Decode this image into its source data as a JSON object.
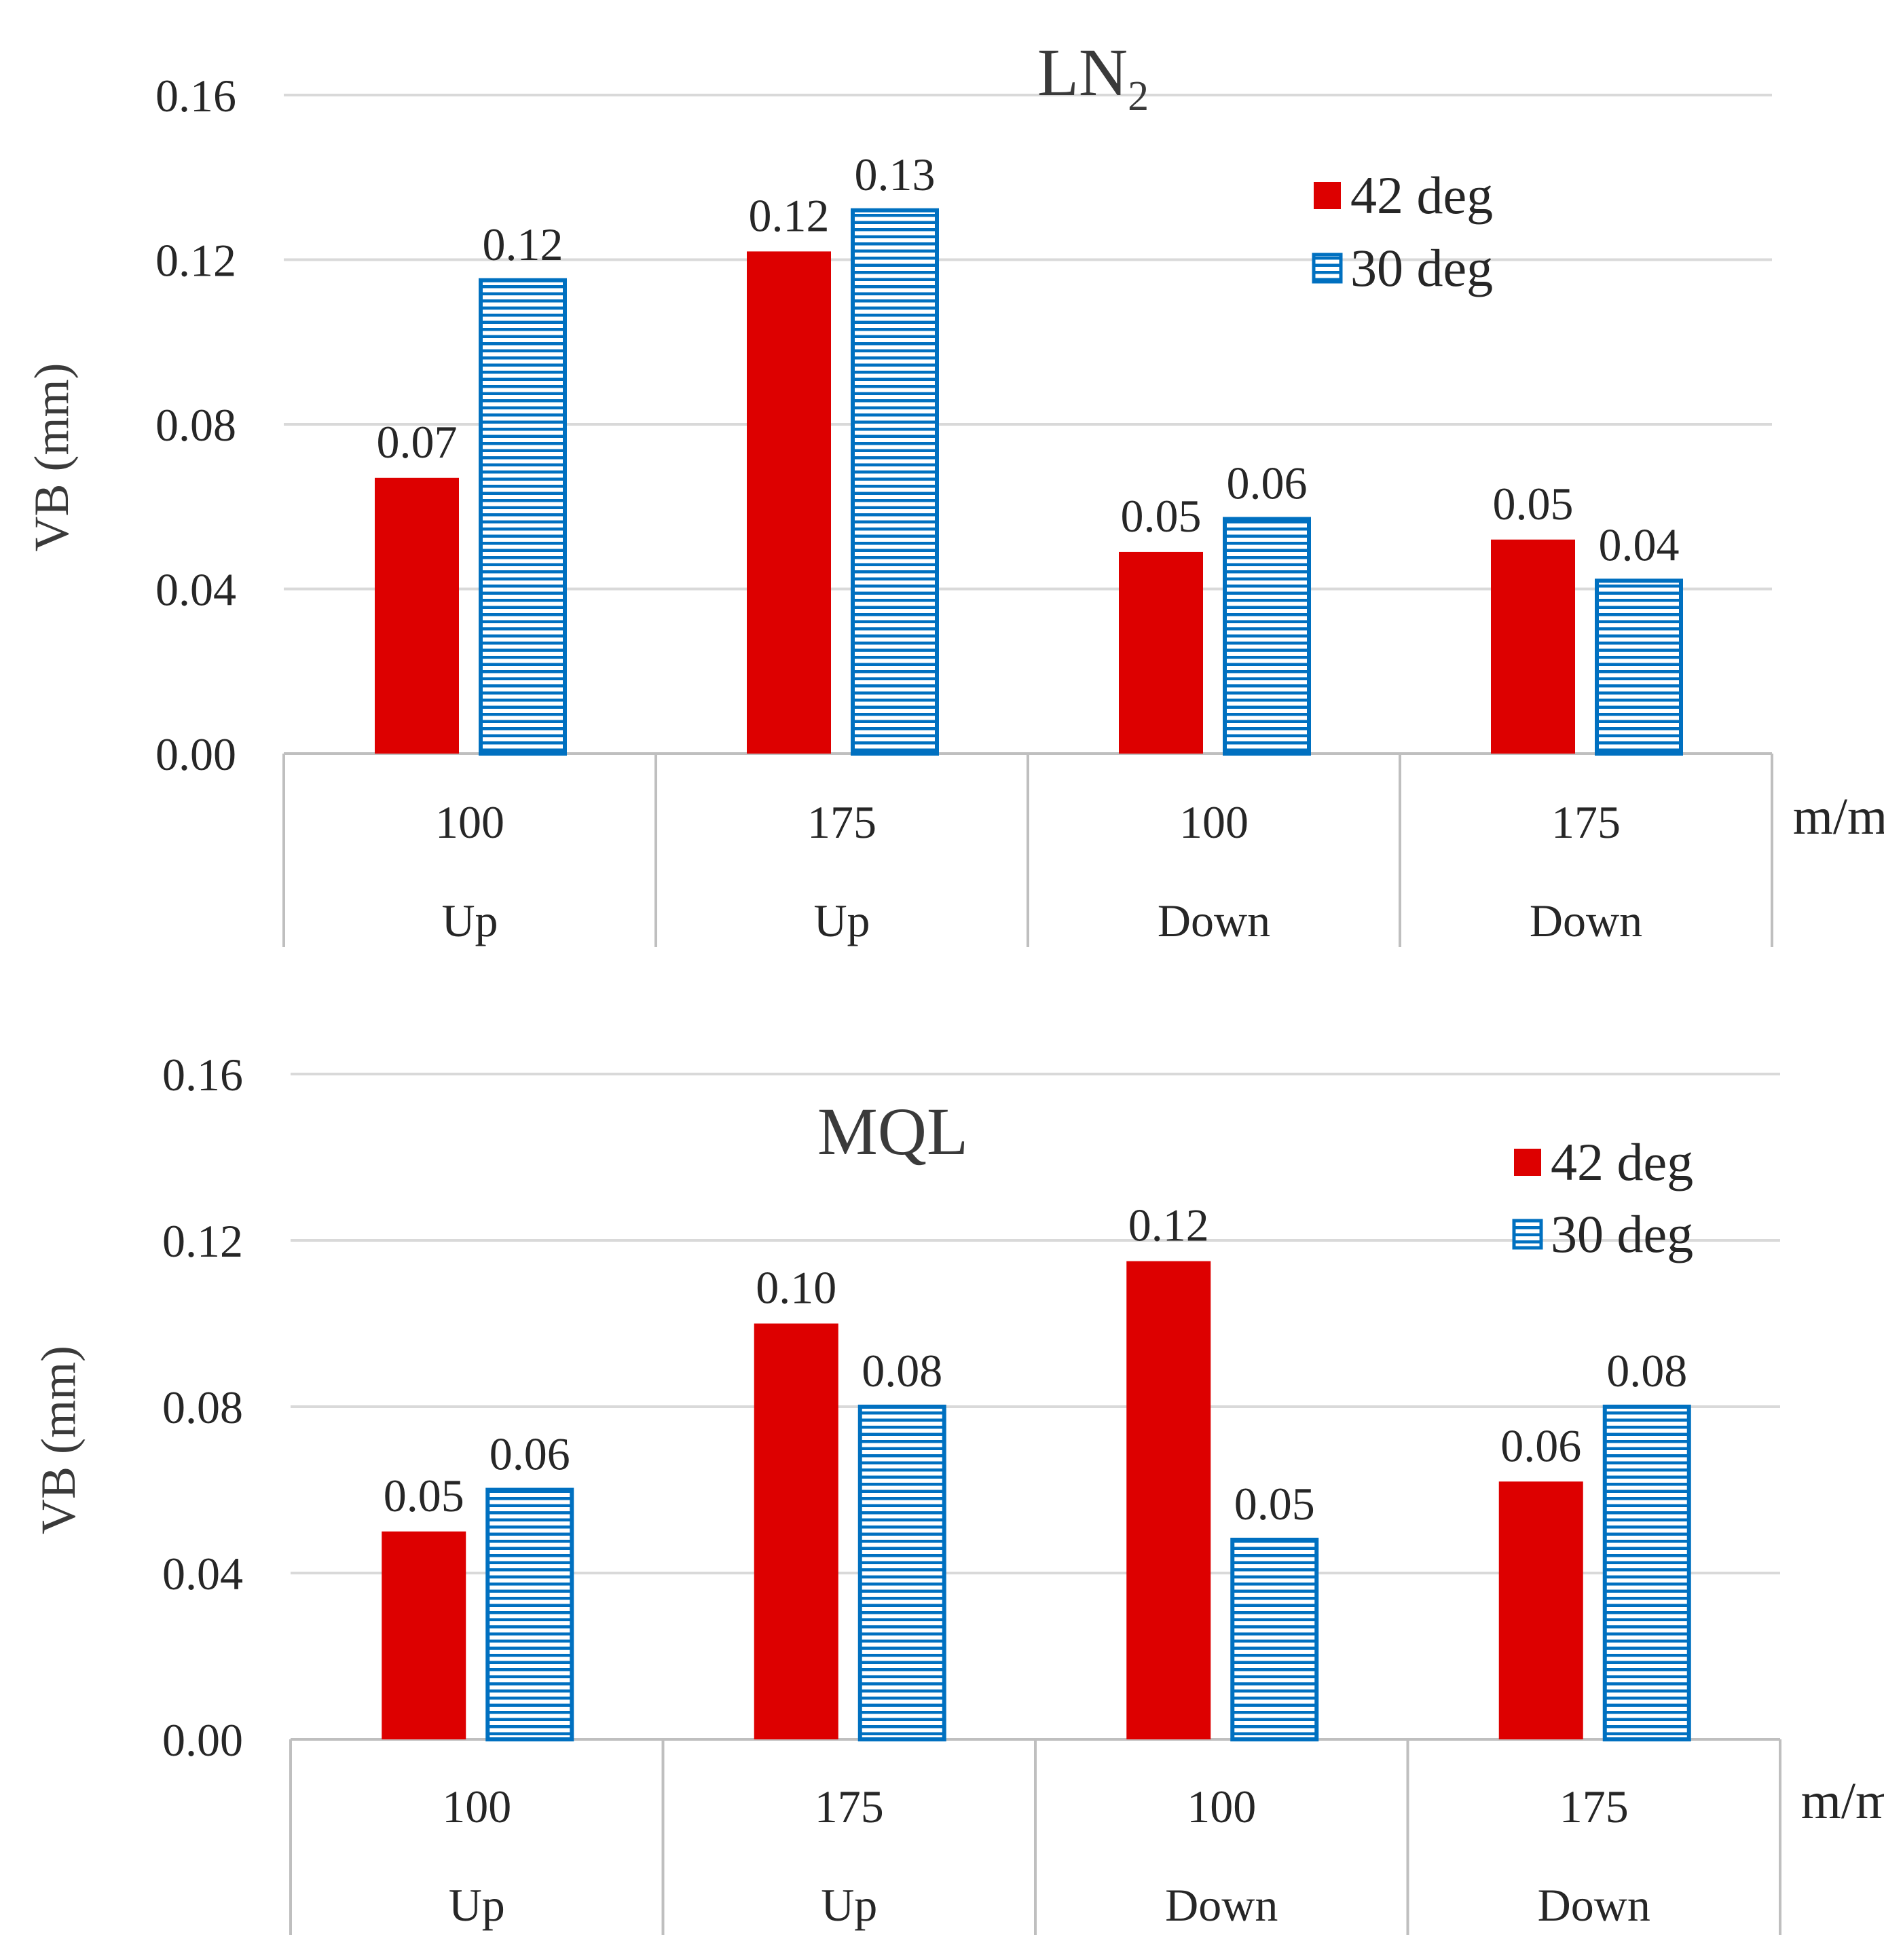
{
  "colors": {
    "series_42": "#DD0000",
    "series_30": "#0070C0",
    "gridline": "#D9D9D9",
    "axis": "#BFBFBF",
    "text": "#262626"
  },
  "chart_data": [
    {
      "type": "bar",
      "title": "LN",
      "title_subscript": "2",
      "ylabel": "VB (mm)",
      "xunit": "m/min",
      "ylim": [
        0,
        0.16
      ],
      "yticks": [
        "0.00",
        "0.04",
        "0.08",
        "0.12",
        "0.16"
      ],
      "categories": [
        {
          "speed": "100",
          "direction": "Up"
        },
        {
          "speed": "175",
          "direction": "Up"
        },
        {
          "speed": "100",
          "direction": "Down"
        },
        {
          "speed": "175",
          "direction": "Down"
        }
      ],
      "series": [
        {
          "name": "42 deg",
          "pattern": "solid",
          "values": [
            0.067,
            0.122,
            0.049,
            0.052
          ],
          "labels": [
            "0.07",
            "0.12",
            "0.05",
            "0.05"
          ]
        },
        {
          "name": "30 deg",
          "pattern": "horizontal-stripes",
          "values": [
            0.115,
            0.132,
            0.057,
            0.042
          ],
          "labels": [
            "0.12",
            "0.13",
            "0.06",
            "0.04"
          ]
        }
      ],
      "legend": "top-right"
    },
    {
      "type": "bar",
      "title": "MQL",
      "title_subscript": "",
      "ylabel": "VB (mm)",
      "xunit": "m/min",
      "ylim": [
        0,
        0.16
      ],
      "yticks": [
        "0.00",
        "0.04",
        "0.08",
        "0.12",
        "0.16"
      ],
      "categories": [
        {
          "speed": "100",
          "direction": "Up"
        },
        {
          "speed": "175",
          "direction": "Up"
        },
        {
          "speed": "100",
          "direction": "Down"
        },
        {
          "speed": "175",
          "direction": "Down"
        }
      ],
      "series": [
        {
          "name": "42 deg",
          "pattern": "solid",
          "values": [
            0.05,
            0.1,
            0.115,
            0.062
          ],
          "labels": [
            "0.05",
            "0.10",
            "0.12",
            "0.06"
          ]
        },
        {
          "name": "30 deg",
          "pattern": "horizontal-stripes",
          "values": [
            0.06,
            0.08,
            0.048,
            0.08
          ],
          "labels": [
            "0.06",
            "0.08",
            "0.05",
            "0.08"
          ]
        }
      ],
      "legend": "top-right"
    }
  ]
}
